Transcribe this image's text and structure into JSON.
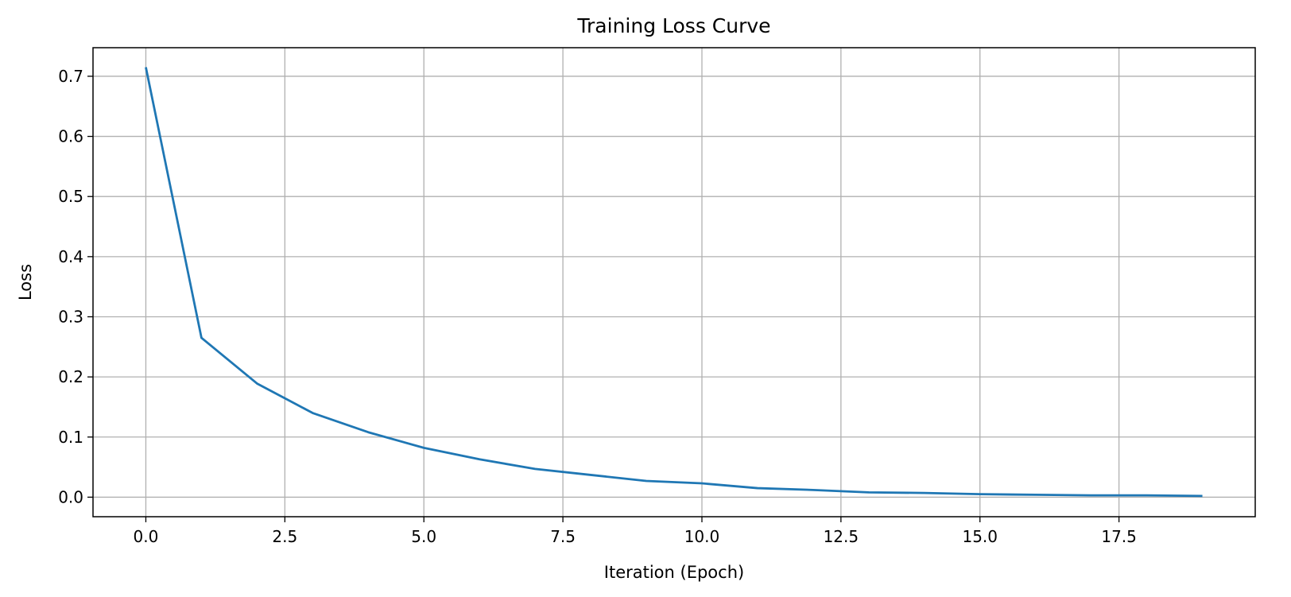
{
  "chart_data": {
    "type": "line",
    "title": "Training Loss Curve",
    "xlabel": "Iteration (Epoch)",
    "ylabel": "Loss",
    "xlim": [
      -0.95,
      19.95
    ],
    "ylim": [
      -0.0325,
      0.7475
    ],
    "grid": true,
    "x_ticks": [
      0.0,
      2.5,
      5.0,
      7.5,
      10.0,
      12.5,
      15.0,
      17.5
    ],
    "x_tick_labels": [
      "0.0",
      "2.5",
      "5.0",
      "7.5",
      "10.0",
      "12.5",
      "15.0",
      "17.5"
    ],
    "y_ticks": [
      0.0,
      0.1,
      0.2,
      0.3,
      0.4,
      0.5,
      0.6,
      0.7
    ],
    "y_tick_labels": [
      "0.0",
      "0.1",
      "0.2",
      "0.3",
      "0.4",
      "0.5",
      "0.6",
      "0.7"
    ],
    "series": [
      {
        "name": "Training Loss",
        "color": "#1f77b4",
        "x": [
          0,
          1,
          2,
          3,
          4,
          5,
          6,
          7,
          8,
          9,
          10,
          11,
          12,
          13,
          14,
          15,
          16,
          17,
          18,
          19
        ],
        "values": [
          0.715,
          0.265,
          0.189,
          0.14,
          0.108,
          0.082,
          0.063,
          0.047,
          0.037,
          0.027,
          0.023,
          0.015,
          0.012,
          0.008,
          0.007,
          0.005,
          0.004,
          0.003,
          0.003,
          0.002
        ]
      }
    ],
    "colors": {
      "grid": "#b0b0b0",
      "axes": "#000000",
      "background": "#ffffff"
    }
  }
}
